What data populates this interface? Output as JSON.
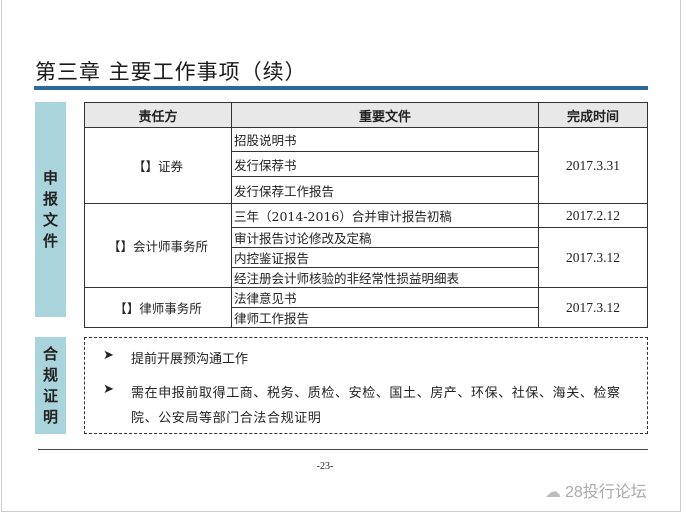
{
  "title": "第三章 主要工作事项（续）",
  "section1": {
    "label": [
      "申",
      "报",
      "文",
      "件"
    ],
    "headers": [
      "责任方",
      "重要文件",
      "完成时间"
    ],
    "groups": [
      {
        "party": "【】证券",
        "docs": [
          "招股说明书",
          "发行保荐书",
          "发行保荐工作报告"
        ],
        "dates": [
          "2017.3.31"
        ]
      },
      {
        "party": "【】会计师事务所",
        "docs": [
          "三年（2014-2016）合并审计报告初稿",
          "审计报告讨论修改及定稿",
          "内控鉴证报告",
          "经注册会计师核验的非经常性损益明细表"
        ],
        "dates": [
          "2017.2.12",
          "2017.3.12"
        ]
      },
      {
        "party": "【】律师事务所",
        "docs": [
          "法律意见书",
          "律师工作报告"
        ],
        "dates": [
          "2017.3.12"
        ]
      }
    ]
  },
  "section2": {
    "label": [
      "合",
      "规",
      "证",
      "明"
    ],
    "bullets": [
      "提前开展预沟通工作",
      "需在申报前取得工商、税务、质检、安检、国土、房产、环保、社保、海关、检察院、公安局等部门合法合规证明"
    ],
    "bullet_icon": "arrow-bullet-icon"
  },
  "page_number": "-23-",
  "watermark": "28投行论坛",
  "colors": {
    "accent_bar": "#2a6a9c",
    "side_label_bg": "#aad4dc",
    "header_bg": "#e8e8e8"
  }
}
